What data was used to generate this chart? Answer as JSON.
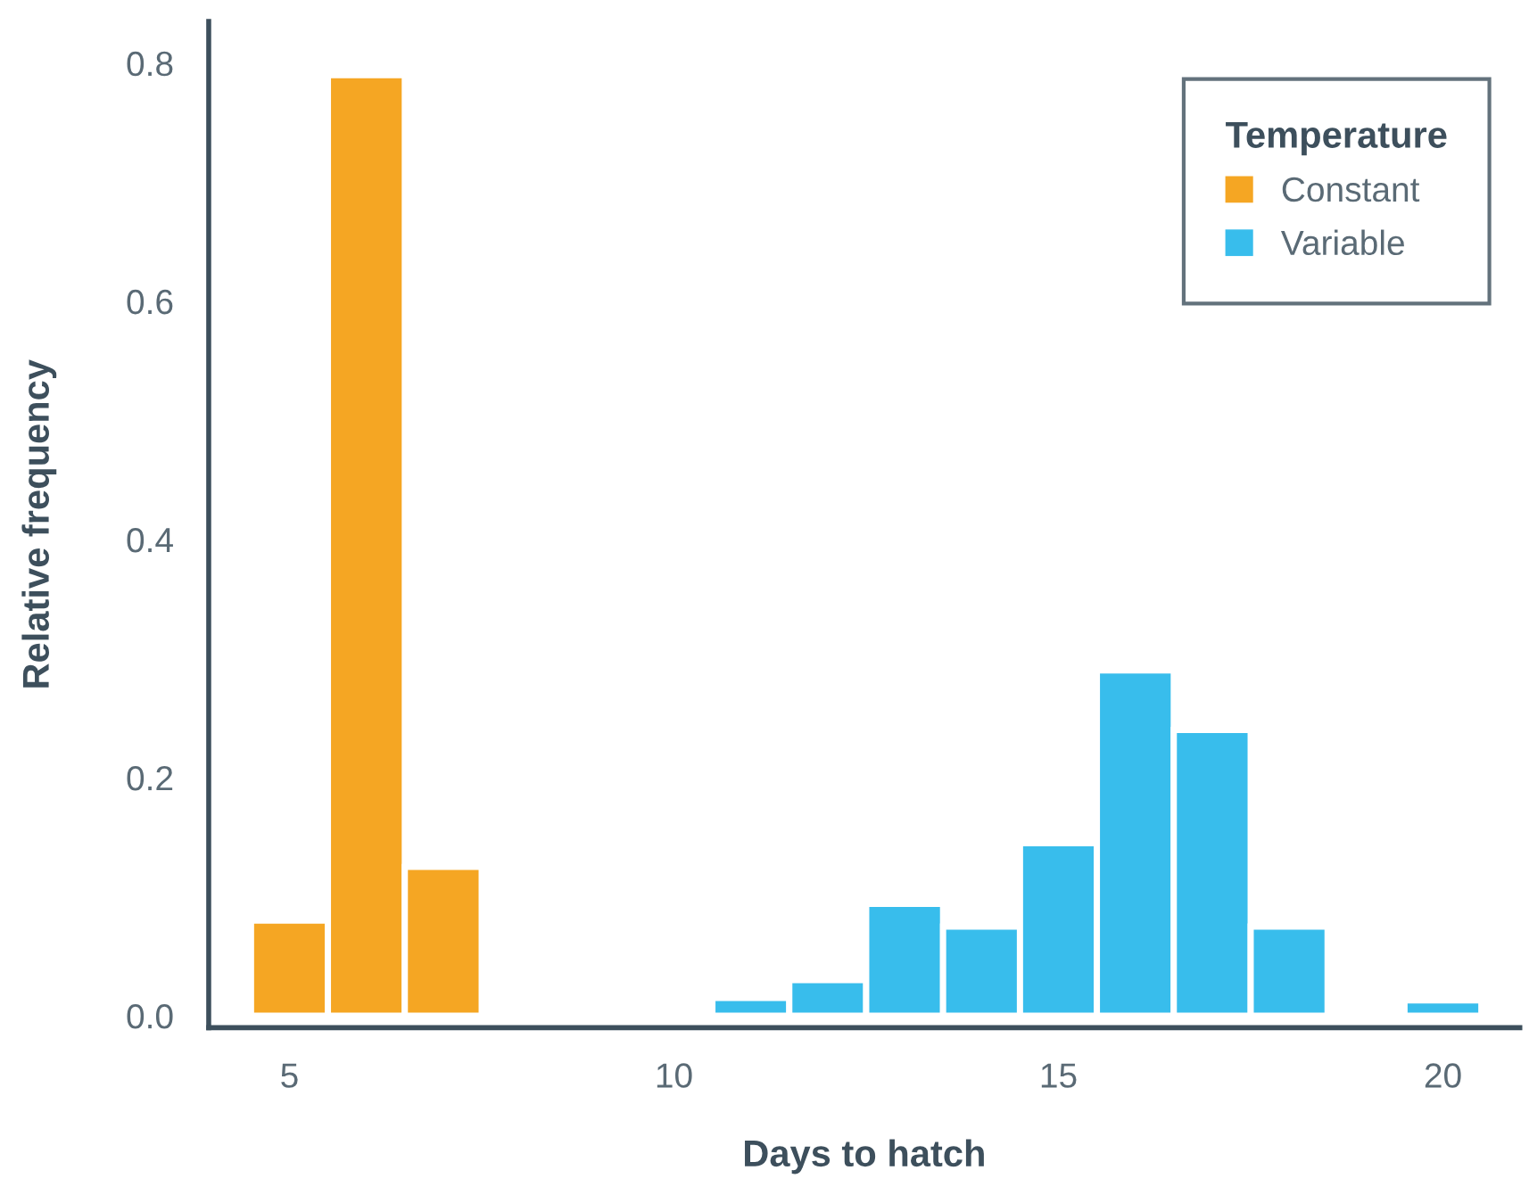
{
  "chart_data": {
    "type": "histogram",
    "xlabel": "Days to hatch",
    "ylabel": "Relative frequency",
    "legend_title": "Temperature",
    "bins": [
      4.5,
      5.5,
      6.5,
      7.5,
      8.5,
      9.5,
      10.5,
      11.5,
      12.5,
      13.5,
      14.5,
      15.5,
      16.5,
      17.5,
      18.5,
      19.5,
      20.5
    ],
    "series": [
      {
        "name": "Constant",
        "color": "#f5a623",
        "values": [
          0.08,
          0.79,
          0.125,
          null,
          null,
          null,
          null,
          null,
          null,
          null,
          null,
          null,
          null,
          null,
          null,
          null
        ]
      },
      {
        "name": "Variable",
        "color": "#38bdec",
        "values": [
          null,
          null,
          null,
          null,
          null,
          null,
          0.015,
          0.03,
          0.094,
          0.075,
          0.145,
          0.29,
          0.24,
          0.075,
          null,
          0.013
        ]
      }
    ],
    "xlim": [
      3.95,
      21
    ],
    "ylim": [
      -0.01,
      0.835
    ],
    "xticks": [
      5,
      10,
      15,
      20
    ],
    "yticks": [
      {
        "value": 0,
        "label": "0.0"
      },
      0.2,
      0.4,
      0.6,
      0.8
    ],
    "grid": false,
    "legend": "top right"
  }
}
